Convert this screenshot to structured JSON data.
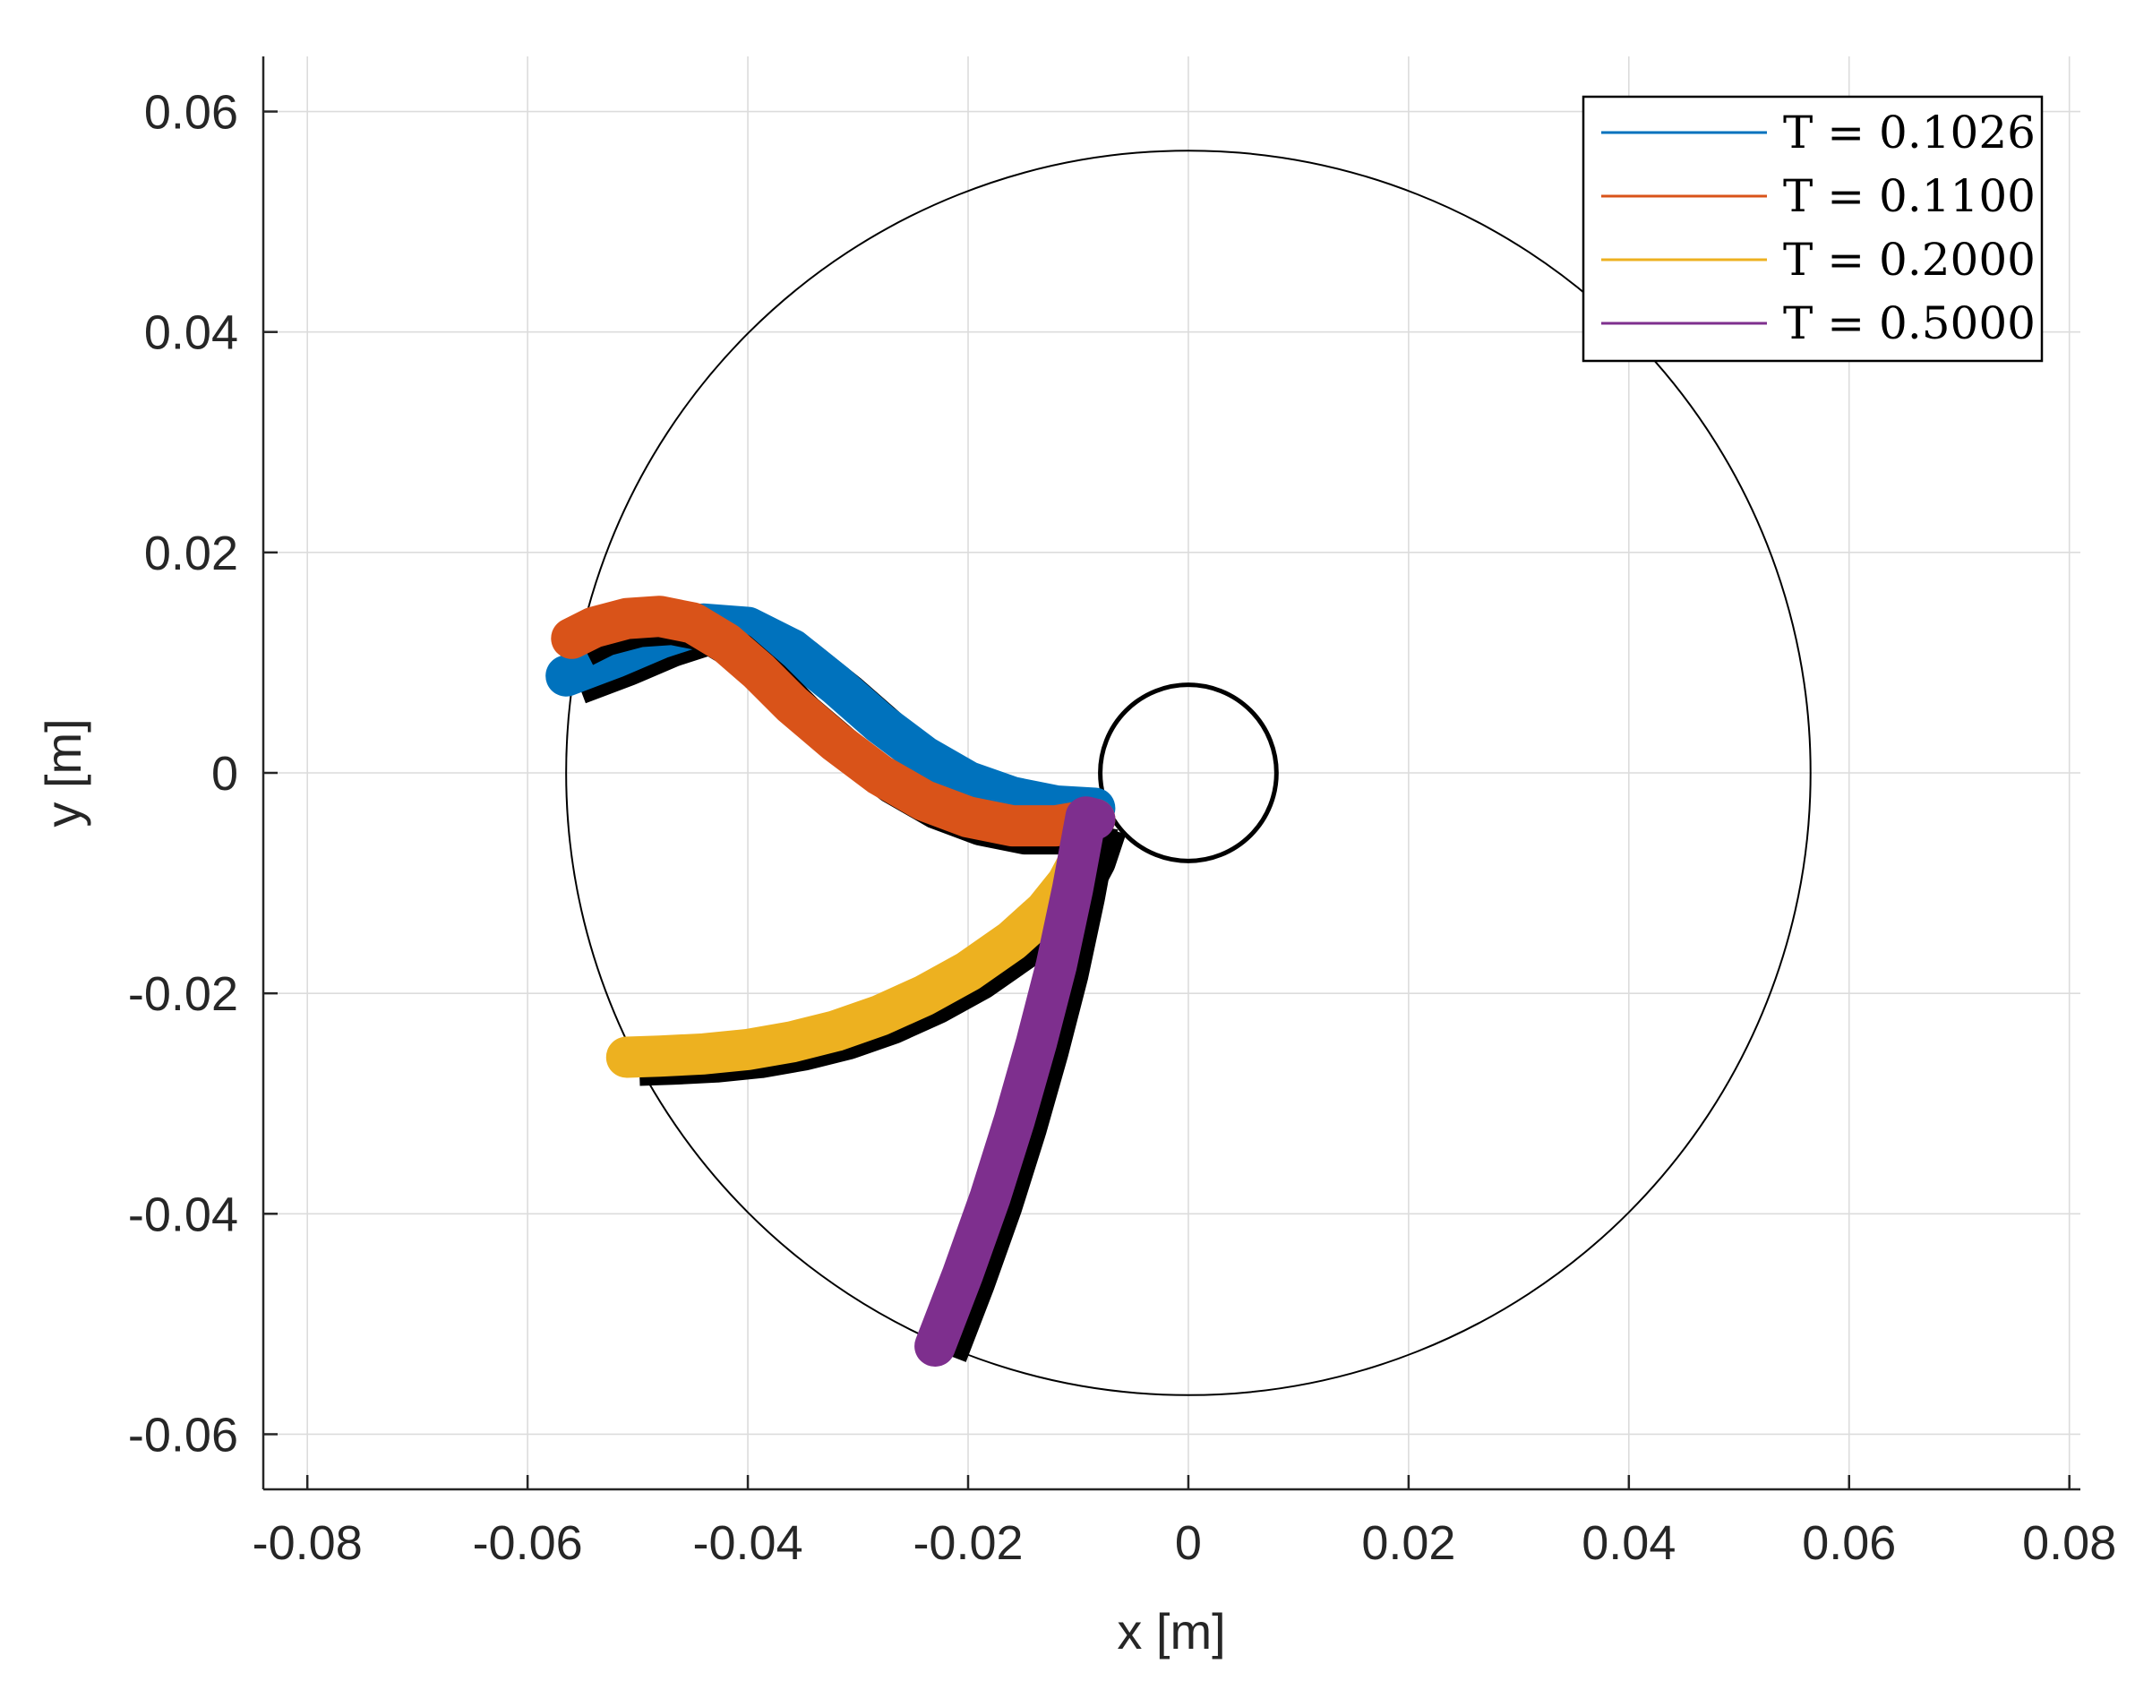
{
  "chart_data": {
    "type": "line",
    "xlabel": "x [m]",
    "ylabel": "y [m]",
    "xlim": [
      -0.084,
      0.081
    ],
    "ylim": [
      -0.065,
      0.065
    ],
    "x_ticks": [
      -0.08,
      -0.06,
      -0.04,
      -0.02,
      0,
      0.02,
      0.04,
      0.06,
      0.08
    ],
    "x_tick_labels": [
      "-0.08",
      "-0.06",
      "-0.04",
      "-0.02",
      "0",
      "0.02",
      "0.04",
      "0.06",
      "0.08"
    ],
    "y_ticks": [
      -0.06,
      -0.04,
      -0.02,
      0,
      0.02,
      0.04,
      0.06
    ],
    "y_tick_labels": [
      "-0.06",
      "-0.04",
      "-0.02",
      "0",
      "0.02",
      "0.04",
      "0.06"
    ],
    "grid": true,
    "legend_position": "top-right",
    "outer_circle": {
      "cx": 0,
      "cy": 0,
      "r": 0.0565,
      "color": "#000000"
    },
    "inner_circle": {
      "cx": 0,
      "cy": 0,
      "r": 0.008,
      "color": "#000000"
    },
    "series": [
      {
        "name": "T = 0.1026",
        "legend_label": "T = 0.1026",
        "color": "#0072BD",
        "x": [
          -0.0565,
          -0.052,
          -0.048,
          -0.044,
          -0.04,
          -0.036,
          -0.032,
          -0.028,
          -0.024,
          -0.02,
          -0.016,
          -0.012,
          -0.0085
        ],
        "y": [
          0.0088,
          0.0105,
          0.0122,
          0.0135,
          0.0132,
          0.0112,
          0.008,
          0.0045,
          0.0015,
          -0.0008,
          -0.0022,
          -0.003,
          -0.0032
        ]
      },
      {
        "name": "T = 0.1100",
        "legend_label": "T = 0.1100",
        "color": "#D95319",
        "x": [
          -0.056,
          -0.054,
          -0.051,
          -0.048,
          -0.045,
          -0.042,
          -0.039,
          -0.036,
          -0.032,
          -0.028,
          -0.024,
          -0.02,
          -0.016,
          -0.012,
          -0.0085
        ],
        "y": [
          0.0122,
          0.0132,
          0.014,
          0.0142,
          0.0136,
          0.0118,
          0.0092,
          0.0062,
          0.0028,
          -0.0002,
          -0.0025,
          -0.004,
          -0.0048,
          -0.0048,
          -0.0042
        ]
      },
      {
        "name": "T = 0.2000",
        "legend_label": "T = 0.2000",
        "color": "#EDB120",
        "x": [
          -0.051,
          -0.048,
          -0.044,
          -0.04,
          -0.036,
          -0.032,
          -0.028,
          -0.024,
          -0.02,
          -0.016,
          -0.013,
          -0.011,
          -0.0095,
          -0.0085
        ],
        "y": [
          -0.0258,
          -0.0257,
          -0.0255,
          -0.0251,
          -0.0244,
          -0.0234,
          -0.022,
          -0.0202,
          -0.018,
          -0.0152,
          -0.0125,
          -0.01,
          -0.0072,
          -0.0042
        ]
      },
      {
        "name": "T = 0.5000",
        "legend_label": "T = 0.5000",
        "color": "#7E2F8E",
        "x": [
          -0.023,
          -0.0205,
          -0.018,
          -0.0158,
          -0.0138,
          -0.012,
          -0.0105,
          -0.0093,
          -0.0085
        ],
        "y": [
          -0.052,
          -0.0455,
          -0.0385,
          -0.0315,
          -0.0245,
          -0.0175,
          -0.0105,
          -0.004,
          -0.0042
        ]
      }
    ]
  }
}
